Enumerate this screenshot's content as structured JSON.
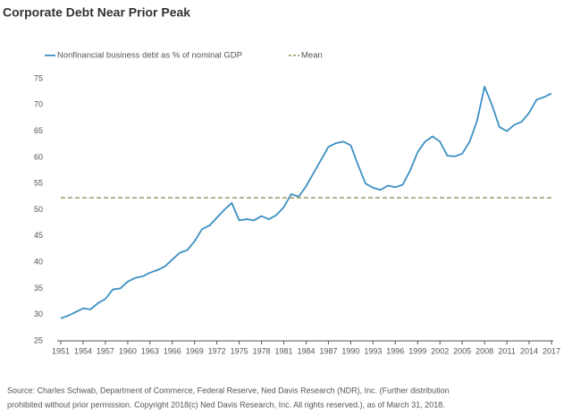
{
  "chart_data": {
    "type": "line",
    "title": "Corporate Debt Near Prior Peak",
    "x": [
      1951,
      1952,
      1953,
      1954,
      1955,
      1956,
      1957,
      1958,
      1959,
      1960,
      1961,
      1962,
      1963,
      1964,
      1965,
      1966,
      1967,
      1968,
      1969,
      1970,
      1971,
      1972,
      1973,
      1974,
      1975,
      1976,
      1977,
      1978,
      1979,
      1980,
      1981,
      1982,
      1983,
      1984,
      1985,
      1986,
      1987,
      1988,
      1989,
      1990,
      1991,
      1992,
      1993,
      1994,
      1995,
      1996,
      1997,
      1998,
      1999,
      2000,
      2001,
      2002,
      2003,
      2004,
      2005,
      2006,
      2007,
      2008,
      2009,
      2010,
      2011,
      2012,
      2013,
      2014,
      2015,
      2016,
      2017
    ],
    "series": [
      {
        "name": "Nonfinancial business debt as % of nominal GDP",
        "color": "#3b8fc2",
        "values": [
          29.3,
          29.8,
          30.5,
          31.2,
          31.0,
          32.2,
          33.0,
          34.8,
          35.0,
          36.3,
          37.0,
          37.3,
          38.0,
          38.5,
          39.2,
          40.5,
          41.8,
          42.3,
          44.0,
          46.3,
          47.0,
          48.5,
          50.0,
          51.3,
          48.0,
          48.2,
          48.0,
          48.8,
          48.2,
          49.0,
          50.5,
          53.0,
          52.5,
          54.5,
          57.0,
          59.5,
          62.0,
          62.7,
          63.0,
          62.3,
          58.5,
          55.0,
          54.2,
          53.8,
          54.6,
          54.3,
          54.8,
          57.5,
          61.0,
          63.0,
          64.0,
          63.0,
          60.3,
          60.2,
          60.7,
          63.0,
          67.0,
          73.5,
          70.0,
          65.8,
          65.0,
          66.2,
          66.8,
          68.5,
          71.0,
          71.5,
          72.2
        ]
      },
      {
        "name": "Mean",
        "color": "#a3a36f",
        "dashed": true,
        "constant": 52.3
      }
    ],
    "xlim": [
      1951,
      2017
    ],
    "xticks": [
      1951,
      1954,
      1957,
      1960,
      1963,
      1966,
      1969,
      1972,
      1975,
      1978,
      1981,
      1984,
      1987,
      1990,
      1993,
      1996,
      1999,
      2002,
      2005,
      2008,
      2011,
      2014,
      2017
    ],
    "ylim": [
      25,
      75
    ],
    "yticks": [
      25,
      30,
      35,
      40,
      45,
      50,
      55,
      60,
      65,
      70,
      75
    ],
    "grid": false,
    "legend": "top-left",
    "source": [
      "Source: Charles Schwab, Department of Commerce, Federal Reserve, Ned Davis Research (NDR), Inc. (Further distribution",
      "prohibited without prior permission. Copyright 2018(c) Ned Davis Research, Inc. All rights reserved.), as of March 31, 2018."
    ]
  }
}
